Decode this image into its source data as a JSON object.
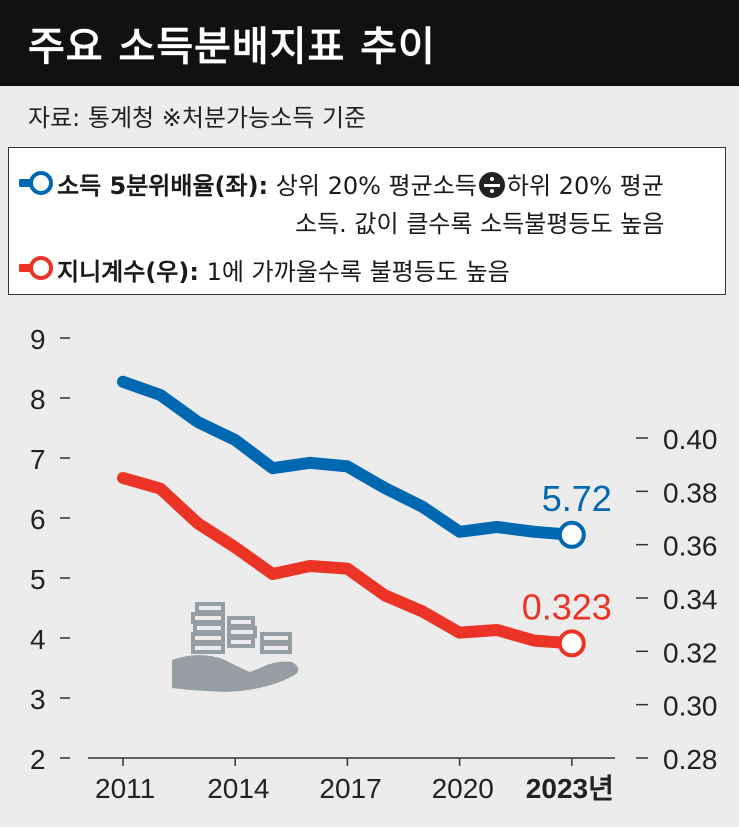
{
  "header": {
    "title": "주요 소득분배지표 추이"
  },
  "source": "자료: 통계청  ※처분가능소득 기준",
  "legend": {
    "series1_key": "소득 5분위배율(좌):",
    "series1_desc_a": "상위 20% 평균소득",
    "series1_desc_b": "하위 20% 평균",
    "series1_desc_c": "소득. 값이 클수록 소득불평등도 높음",
    "series2_key": "지니계수(우):",
    "series2_desc": "1에 가까울수록 불평등도 높음"
  },
  "colors": {
    "blue": "#0067b1",
    "red": "#ec3426",
    "icon": "#959ea2"
  },
  "chart_data": {
    "type": "line",
    "title": "주요 소득분배지표 추이",
    "x": [
      2011,
      2012,
      2013,
      2014,
      2015,
      2016,
      2017,
      2018,
      2019,
      2020,
      2021,
      2022,
      2023
    ],
    "x_tick_labels": [
      "2011",
      "2014",
      "2017",
      "2020",
      "2023년"
    ],
    "x_tick_values": [
      2011,
      2014,
      2017,
      2020,
      2023
    ],
    "left_axis": {
      "ylim": [
        2,
        9
      ],
      "ticks": [
        "9",
        "8",
        "7",
        "6",
        "5",
        "4",
        "3",
        "2"
      ],
      "tick_values": [
        9,
        8,
        7,
        6,
        5,
        4,
        3,
        2
      ]
    },
    "right_axis": {
      "ylim": [
        0.28,
        0.4
      ],
      "ticks": [
        "0.40",
        "0.38",
        "0.36",
        "0.34",
        "0.32",
        "0.30",
        "0.28"
      ],
      "tick_values": [
        0.4,
        0.38,
        0.36,
        0.34,
        0.32,
        0.3,
        0.28
      ]
    },
    "series": [
      {
        "name": "소득 5분위배율(좌)",
        "axis": "left",
        "color": "#0067b1",
        "values": [
          8.27,
          8.05,
          7.6,
          7.3,
          6.83,
          6.92,
          6.86,
          6.5,
          6.19,
          5.77,
          5.85,
          5.77,
          5.72
        ],
        "end_label": "5.72"
      },
      {
        "name": "지니계수(우)",
        "axis": "right",
        "color": "#ec3426",
        "values": [
          0.385,
          0.381,
          0.368,
          0.359,
          0.349,
          0.352,
          0.351,
          0.341,
          0.335,
          0.327,
          0.328,
          0.324,
          0.323
        ],
        "end_label": "0.323"
      }
    ],
    "grid": false
  }
}
